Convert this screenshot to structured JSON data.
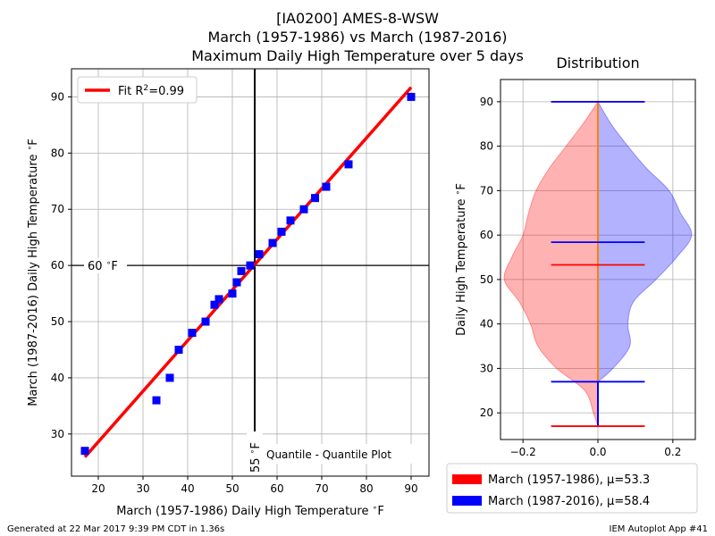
{
  "title_lines": [
    "[IA0200] AMES-8-WSW",
    "March (1957-1986) vs March (1987-2016)",
    "Maximum Daily High Temperature over 5 days"
  ],
  "footer": {
    "left": "Generated at 22 Mar 2017 9:39 PM CDT in 1.36s",
    "right": "IEM Autoplot App #41"
  },
  "chart_data": [
    {
      "type": "scatter",
      "subtitle": "Quantile - Quantile Plot",
      "xlabel": "March (1957-1986) Daily High Temperature $^\\circ$F",
      "ylabel": "March (1987-2016) Daily High Temperature $^\\circ$F",
      "xlim": [
        14,
        94
      ],
      "ylim": [
        22.5,
        95
      ],
      "xticks": [
        20,
        30,
        40,
        50,
        60,
        70,
        80,
        90
      ],
      "yticks": [
        30,
        40,
        50,
        60,
        70,
        80,
        90
      ],
      "grid": true,
      "legend": {
        "placement": "top-left",
        "entries": [
          "Fit R$^2$=0.99"
        ]
      },
      "fit_line": {
        "x": [
          17,
          90
        ],
        "y": [
          25.9,
          91.7
        ],
        "color": "#ff0000",
        "label": "Fit R$^2$=0.99"
      },
      "hline": {
        "y": 60,
        "label": "60 $^\\circ$F"
      },
      "vline": {
        "x": 55,
        "label": "55 $^\\circ$F"
      },
      "marker_color": "#0000ff",
      "points": [
        [
          17,
          27
        ],
        [
          33,
          36
        ],
        [
          36,
          40
        ],
        [
          38,
          45
        ],
        [
          41,
          48
        ],
        [
          44,
          50
        ],
        [
          46,
          53
        ],
        [
          47,
          54
        ],
        [
          50,
          55
        ],
        [
          51,
          57
        ],
        [
          52,
          59
        ],
        [
          54,
          60
        ],
        [
          56,
          62
        ],
        [
          59,
          64
        ],
        [
          61,
          66
        ],
        [
          63,
          68
        ],
        [
          66,
          70
        ],
        [
          68.5,
          72
        ],
        [
          71,
          74
        ],
        [
          76,
          78
        ],
        [
          90,
          90
        ]
      ]
    },
    {
      "type": "violin",
      "title": "Distribution",
      "ylabel": "Daily High Temperature $^\\circ$F",
      "xlim": [
        -0.26,
        0.26
      ],
      "ylim": [
        14,
        95
      ],
      "xticks": [
        -0.2,
        0.0,
        0.2
      ],
      "xtick_labels": [
        "−0.2",
        "0.0",
        "0.2"
      ],
      "yticks": [
        20,
        30,
        40,
        50,
        60,
        70,
        80,
        90
      ],
      "grid": true,
      "legend": {
        "placement": "bottom-center"
      },
      "series": [
        {
          "name": "March (1957-1986), $\\mu$=53.3",
          "color": "#ff0000",
          "side": "left",
          "min": 17,
          "max": 90,
          "mean": 53.3,
          "density_y": [
            17,
            20,
            25,
            30,
            35,
            40,
            45,
            50,
            55,
            60,
            65,
            70,
            75,
            80,
            85,
            90
          ],
          "density_w": [
            0.0,
            0.012,
            0.035,
            0.11,
            0.16,
            0.18,
            0.21,
            0.25,
            0.23,
            0.2,
            0.185,
            0.165,
            0.13,
            0.085,
            0.04,
            0.0
          ]
        },
        {
          "name": "March (1987-2016), $\\mu$=58.4",
          "color": "#0000ff",
          "side": "right",
          "min": 27,
          "max": 90,
          "mean": 58.4,
          "density_y": [
            27,
            30,
            35,
            40,
            45,
            50,
            55,
            60,
            65,
            70,
            75,
            80,
            85,
            90
          ],
          "density_w": [
            0.0,
            0.04,
            0.085,
            0.08,
            0.095,
            0.155,
            0.21,
            0.25,
            0.22,
            0.19,
            0.13,
            0.08,
            0.035,
            0.0
          ]
        }
      ]
    }
  ]
}
